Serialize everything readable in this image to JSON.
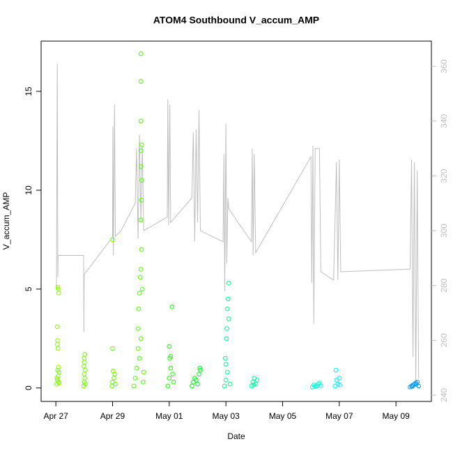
{
  "chart_data": {
    "type": "scatter",
    "title": "ATOM4 Southbound V_accum_AMP",
    "xlabel": "Date",
    "ylabel": "V_accum_AMP",
    "xlim": [
      -0.52,
      13.25
    ],
    "xticks": [
      {
        "value": 0,
        "label": "Apr 27"
      },
      {
        "value": 2,
        "label": "Apr 29"
      },
      {
        "value": 4,
        "label": "May 01"
      },
      {
        "value": 6,
        "label": "May 03"
      },
      {
        "value": 8,
        "label": "May 05"
      },
      {
        "value": 10,
        "label": "May 07"
      },
      {
        "value": 12,
        "label": "May 09"
      }
    ],
    "ylim": [
      -0.68,
      17.54
    ],
    "yticks": [
      0,
      5,
      10,
      15
    ],
    "y2lim": [
      237.7,
      369.2
    ],
    "y2ticks": [
      240,
      260,
      280,
      300,
      320,
      340,
      360
    ],
    "series": [
      {
        "color": "#80ff00",
        "x": [
          0.03,
          0.05,
          0.08,
          0.1,
          0.12,
          0.06,
          0.09,
          0.07,
          0.05,
          0.06,
          0.05,
          0.1,
          0.08,
          0.07,
          0.04,
          0.11
        ],
        "values": [
          0.2,
          0.4,
          0.6,
          0.3,
          0.8,
          0.9,
          1.05,
          2.0,
          2.2,
          2.4,
          3.1,
          4.8,
          5.0,
          5.1,
          0.5,
          0.25
        ]
      },
      {
        "color": "#73ff00",
        "x": [
          0.98,
          1.0,
          1.02,
          1.0,
          1.03,
          0.99,
          1.01,
          1.0,
          1.02,
          1.04
        ],
        "values": [
          0.1,
          0.3,
          0.5,
          0.7,
          0.9,
          1.1,
          1.3,
          1.5,
          1.7,
          0.2
        ]
      },
      {
        "color": "#66ff00",
        "x": [
          1.98,
          2.0,
          2.05,
          2.08,
          2.02,
          2.0,
          2.0,
          2.1
        ],
        "values": [
          0.1,
          0.3,
          0.5,
          0.7,
          0.85,
          2.0,
          7.5,
          0.2
        ]
      },
      {
        "color": "#4dff00",
        "x": [
          2.75,
          2.8,
          2.85,
          2.9,
          2.95,
          2.9,
          2.92,
          3.0,
          3.05,
          3.0,
          3.0,
          3.02,
          3.0,
          3.03,
          3.0,
          3.0,
          3.0,
          3.0,
          3.1,
          3.08,
          2.95,
          3.02,
          3.03,
          2.98
        ],
        "values": [
          0.1,
          0.5,
          1.0,
          2.0,
          4.8,
          3.0,
          4.0,
          2.5,
          5.0,
          6.0,
          8.5,
          9.5,
          11.2,
          12.3,
          12.0,
          13.5,
          15.5,
          16.9,
          0.8,
          0.3,
          1.5,
          7.0,
          10.5,
          5.6
        ]
      },
      {
        "color": "#1aff00",
        "x": [
          3.95,
          4.0,
          4.05,
          4.02,
          4.0,
          4.1,
          4.15,
          4.05,
          4.12
        ],
        "values": [
          0.1,
          0.5,
          1.0,
          1.5,
          2.1,
          4.1,
          0.3,
          1.6,
          0.7
        ]
      },
      {
        "color": "#00ff1a",
        "x": [
          4.8,
          4.85,
          4.9,
          5.0,
          5.05,
          5.1,
          4.95,
          5.08
        ],
        "values": [
          0.1,
          0.3,
          0.5,
          0.2,
          0.7,
          0.9,
          0.4,
          1.0
        ]
      },
      {
        "color": "#00ff80",
        "x": [
          5.95,
          6.0,
          6.05,
          6.0,
          6.02,
          6.03,
          6.05,
          6.1,
          6.08,
          5.98,
          6.15,
          6.1
        ],
        "values": [
          0.1,
          0.4,
          0.8,
          1.2,
          2.5,
          3.0,
          4.0,
          5.3,
          4.5,
          1.5,
          0.2,
          3.5
        ]
      },
      {
        "color": "#00ff99",
        "x": [
          6.9,
          6.95,
          7.0,
          7.05,
          7.1,
          6.98
        ],
        "values": [
          0.1,
          0.3,
          0.5,
          0.2,
          0.4,
          0.15
        ]
      },
      {
        "color": "#00ffd9",
        "x": [
          9.05,
          9.1,
          9.2,
          9.3,
          9.25,
          9.15,
          9.35
        ],
        "values": [
          0.05,
          0.15,
          0.1,
          0.25,
          0.2,
          0.08,
          0.12
        ]
      },
      {
        "color": "#00f2ff",
        "x": [
          9.85,
          9.9,
          9.95,
          10.0,
          9.88,
          10.02
        ],
        "values": [
          0.1,
          0.4,
          0.2,
          0.5,
          0.9,
          0.15
        ]
      },
      {
        "color": "#0099ff",
        "x": [
          12.5,
          12.55,
          12.6,
          12.65,
          12.7,
          12.75,
          12.8,
          12.58,
          12.72
        ],
        "values": [
          0.05,
          0.1,
          0.15,
          0.2,
          0.25,
          0.3,
          0.1,
          0.08,
          0.18
        ]
      },
      {
        "type": "line",
        "axis": "y2",
        "color": "#bebebe",
        "x": [
          0.02,
          0.05,
          0.07,
          0.08,
          0.98,
          0.99,
          1.0,
          2.0,
          2.01,
          2.03,
          2.07,
          2.1,
          2.3,
          2.8,
          2.85,
          2.9,
          2.95,
          3.0,
          3.05,
          3.1,
          3.93,
          3.95,
          3.98,
          4.02,
          4.05,
          4.8,
          4.85,
          4.9,
          4.95,
          5.0,
          5.05,
          5.1,
          5.9,
          5.93,
          5.96,
          6.0,
          6.03,
          6.07,
          6.1,
          6.9,
          6.93,
          6.96,
          7.0,
          7.05,
          9.0,
          9.03,
          9.07,
          9.1,
          9.15,
          9.3,
          9.35,
          9.8,
          9.9,
          9.95,
          10.0,
          10.05,
          12.5,
          12.55,
          12.6,
          12.65,
          12.7,
          12.75,
          12.8
        ],
        "values": [
          279,
          361,
          283,
          291,
          291,
          263,
          284,
          297.7,
          338,
          291,
          346,
          298,
          300,
          310,
          330,
          297,
          335,
          303,
          331,
          300,
          305,
          348,
          302,
          346,
          303,
          312,
          336,
          296,
          337,
          303,
          344,
          300,
          296,
          328,
          278,
          339,
          288,
          312,
          308,
          296,
          330,
          291,
          328,
          292,
          327,
          281,
          331,
          266,
          330,
          330,
          285,
          282,
          325,
          282,
          326,
          285,
          286,
          326,
          254,
          325,
          244,
          322,
          246
        ]
      }
    ]
  }
}
